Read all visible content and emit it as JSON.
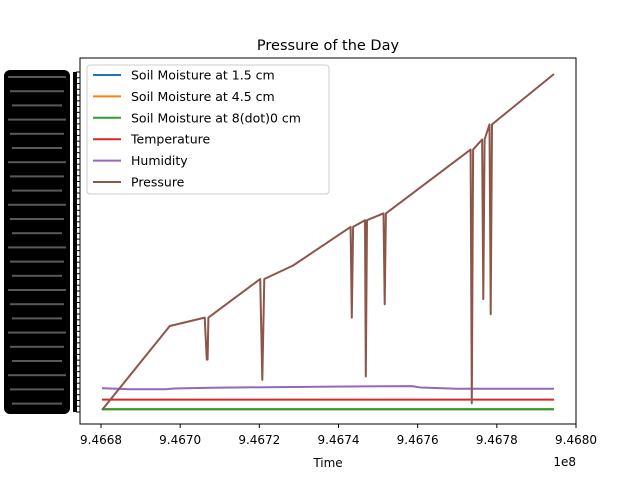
{
  "chart_data": {
    "type": "line",
    "title": "Pressure of the Day",
    "xlabel": "Time",
    "ylabel": "",
    "x_offset_label": "1e8",
    "xlim": [
      946684000.0,
      946796500.0
    ],
    "ylim": [
      0,
      100
    ],
    "x_ticks": [
      946680000.0,
      946700000.0,
      946720000.0,
      946740000.0,
      946760000.0,
      946780000.0,
      946800000.0
    ],
    "x_tick_labels": [
      "9.4668",
      "9.4670",
      "9.4672",
      "9.4674",
      "9.4676",
      "9.4678",
      "9.4680"
    ],
    "y_tick_labels_note": "Y-axis tick labels are overlapping and illegible",
    "grid": false,
    "legend_position": "top-left",
    "series": [
      {
        "name": "Soil Moisture at 1.5 cm",
        "color": "#1f77b4",
        "x": [
          946685500.0,
          946795500.0
        ],
        "y": [
          0.2,
          0.2
        ]
      },
      {
        "name": "Soil Moisture at 4.5 cm",
        "color": "#ff7f0e",
        "x": [
          946685500.0,
          946795500.0
        ],
        "y": [
          0.2,
          0.2
        ]
      },
      {
        "name": "Soil Moisture at 8(dot)0 cm",
        "color": "#2ca02c",
        "x": [
          946685500.0,
          946795500.0
        ],
        "y": [
          0.2,
          0.2
        ]
      },
      {
        "name": "Temperature",
        "color": "#d62728",
        "x": [
          946685500.0,
          946795500.0
        ],
        "y": [
          3.1,
          3.1
        ]
      },
      {
        "name": "Humidity",
        "color": "#9467bd",
        "x": [
          946685500.0,
          946692000.0,
          946701000.0,
          946703000.0,
          946712000.0,
          946725000.0,
          946745000.0,
          946761000.0,
          946763000.0,
          946772000.0,
          946795500.0
        ],
        "y": [
          6.5,
          6.2,
          6.2,
          6.4,
          6.6,
          6.8,
          7.0,
          7.1,
          6.7,
          6.3,
          6.3
        ]
      },
      {
        "name": "Pressure",
        "color": "#8c564b",
        "x": [
          946685500.0,
          946702000.0,
          946710500.0,
          946711000.0,
          946711200.0,
          946711400.0,
          946724000.0,
          946724500.0,
          946725000.0,
          946732000.0,
          946746000.0,
          946746300.0,
          946746600.0,
          946749500.0,
          946749700.0,
          946750000.0,
          946754000.0,
          946754300.0,
          946754600.0,
          946775200.0,
          946775500.0,
          946775800.0,
          946778000.0,
          946778300.0,
          946778600.0,
          946779800.0,
          946780100.0,
          946780400.0,
          946795500.0
        ],
        "y": [
          0,
          25,
          27.5,
          15,
          15,
          27.5,
          39,
          9,
          39,
          43,
          54.5,
          27.5,
          54.5,
          56.5,
          10,
          56.5,
          58.5,
          31.5,
          58.5,
          77.5,
          2,
          77.5,
          80.5,
          33,
          80.5,
          85,
          28.5,
          85,
          100
        ]
      }
    ]
  }
}
